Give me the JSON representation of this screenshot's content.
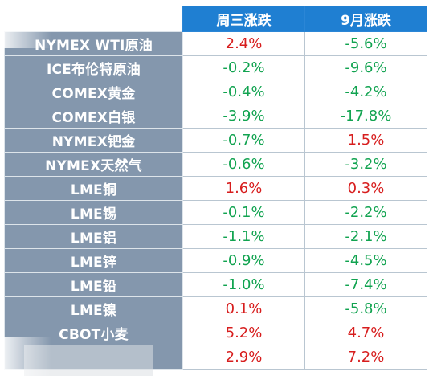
{
  "table": {
    "headers": [
      "",
      "周三涨跌",
      "9月涨跌"
    ],
    "rows": [
      {
        "name": "NYMEX WTI原油",
        "wed": "2.4%",
        "wed_dir": "up",
        "sep": "-5.6%",
        "sep_dir": "down"
      },
      {
        "name": "ICE布伦特原油",
        "wed": "-0.2%",
        "wed_dir": "down",
        "sep": "-9.6%",
        "sep_dir": "down"
      },
      {
        "name": "COMEX黄金",
        "wed": "-0.4%",
        "wed_dir": "down",
        "sep": "-4.2%",
        "sep_dir": "down"
      },
      {
        "name": "COMEX白银",
        "wed": "-3.9%",
        "wed_dir": "down",
        "sep": "-17.8%",
        "sep_dir": "down"
      },
      {
        "name": "NYMEX钯金",
        "wed": "-0.7%",
        "wed_dir": "down",
        "sep": "1.5%",
        "sep_dir": "up"
      },
      {
        "name": "NYMEX天然气",
        "wed": "-0.6%",
        "wed_dir": "down",
        "sep": "-3.2%",
        "sep_dir": "down"
      },
      {
        "name": "LME铜",
        "wed": "1.6%",
        "wed_dir": "up",
        "sep": "0.3%",
        "sep_dir": "up"
      },
      {
        "name": "LME锡",
        "wed": "-0.1%",
        "wed_dir": "down",
        "sep": "-2.2%",
        "sep_dir": "down"
      },
      {
        "name": "LME铝",
        "wed": "-1.1%",
        "wed_dir": "down",
        "sep": "-2.1%",
        "sep_dir": "down"
      },
      {
        "name": "LME锌",
        "wed": "-0.9%",
        "wed_dir": "down",
        "sep": "-4.5%",
        "sep_dir": "down"
      },
      {
        "name": "LME铅",
        "wed": "-1.0%",
        "wed_dir": "down",
        "sep": "-7.4%",
        "sep_dir": "down"
      },
      {
        "name": "LME镍",
        "wed": "0.1%",
        "wed_dir": "up",
        "sep": "-5.8%",
        "sep_dir": "down"
      },
      {
        "name": "CBOT小麦",
        "wed": "5.2%",
        "wed_dir": "up",
        "sep": "4.7%",
        "sep_dir": "up"
      },
      {
        "name": "",
        "wed": "2.9%",
        "wed_dir": "up",
        "sep": "7.2%",
        "sep_dir": "up"
      }
    ]
  },
  "colors": {
    "header_bg": "#1f7fd2",
    "name_bg": "#8497ad",
    "up": "#d71d1d",
    "down": "#11a350"
  }
}
